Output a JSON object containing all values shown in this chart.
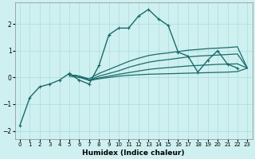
{
  "xlabel": "Humidex (Indice chaleur)",
  "bg_color": "#cff0f0",
  "line_color": "#1a6b6b",
  "grid_color": "#aadddd",
  "xlim": [
    -0.5,
    23.5
  ],
  "ylim": [
    -2.3,
    2.8
  ],
  "xticks": [
    0,
    1,
    2,
    3,
    4,
    5,
    6,
    7,
    8,
    9,
    10,
    11,
    12,
    13,
    14,
    15,
    16,
    17,
    18,
    19,
    20,
    21,
    22,
    23
  ],
  "yticks": [
    -2,
    -1,
    0,
    1,
    2
  ],
  "series": [
    {
      "x": [
        0,
        1,
        2,
        3,
        4,
        5,
        6,
        7,
        8,
        9,
        10,
        11,
        12,
        13,
        14,
        15,
        16,
        17,
        18,
        19,
        20,
        21,
        22
      ],
      "y": [
        -1.8,
        -0.75,
        -0.35,
        -0.25,
        -0.1,
        0.15,
        -0.1,
        -0.25,
        0.45,
        1.6,
        1.85,
        1.85,
        2.3,
        2.55,
        2.2,
        1.95,
        0.95,
        0.8,
        0.2,
        0.65,
        1.0,
        0.5,
        0.35
      ],
      "marker": true,
      "lw": 1.0
    },
    {
      "x": [
        5,
        6,
        7,
        8,
        9,
        10,
        11,
        12,
        13,
        14,
        15,
        16,
        17,
        18,
        19,
        20,
        21,
        22,
        23
      ],
      "y": [
        0.1,
        0.05,
        -0.05,
        0.15,
        0.3,
        0.45,
        0.6,
        0.72,
        0.82,
        0.88,
        0.92,
        0.97,
        1.02,
        1.05,
        1.08,
        1.1,
        1.12,
        1.15,
        0.35
      ],
      "marker": false,
      "lw": 0.9
    },
    {
      "x": [
        5,
        6,
        7,
        8,
        9,
        10,
        11,
        12,
        13,
        14,
        15,
        16,
        17,
        18,
        19,
        20,
        21,
        22,
        23
      ],
      "y": [
        0.05,
        0.0,
        -0.1,
        0.05,
        0.15,
        0.25,
        0.38,
        0.48,
        0.57,
        0.63,
        0.67,
        0.72,
        0.77,
        0.8,
        0.82,
        0.84,
        0.86,
        0.88,
        0.35
      ],
      "marker": false,
      "lw": 0.9
    },
    {
      "x": [
        5,
        6,
        7,
        8,
        9,
        10,
        11,
        12,
        13,
        14,
        15,
        16,
        17,
        18,
        19,
        20,
        21,
        22,
        23
      ],
      "y": [
        0.1,
        0.05,
        -0.1,
        -0.02,
        0.05,
        0.12,
        0.18,
        0.24,
        0.3,
        0.34,
        0.37,
        0.4,
        0.43,
        0.45,
        0.47,
        0.49,
        0.5,
        0.51,
        0.35
      ],
      "marker": false,
      "lw": 0.9
    },
    {
      "x": [
        5,
        6,
        7,
        8,
        9,
        10,
        11,
        12,
        13,
        14,
        15,
        16,
        17,
        18,
        19,
        20,
        21,
        22,
        23
      ],
      "y": [
        0.1,
        0.05,
        -0.12,
        -0.05,
        0.0,
        0.05,
        0.08,
        0.1,
        0.12,
        0.13,
        0.14,
        0.15,
        0.16,
        0.17,
        0.18,
        0.19,
        0.2,
        0.22,
        0.35
      ],
      "marker": false,
      "lw": 0.9
    }
  ]
}
